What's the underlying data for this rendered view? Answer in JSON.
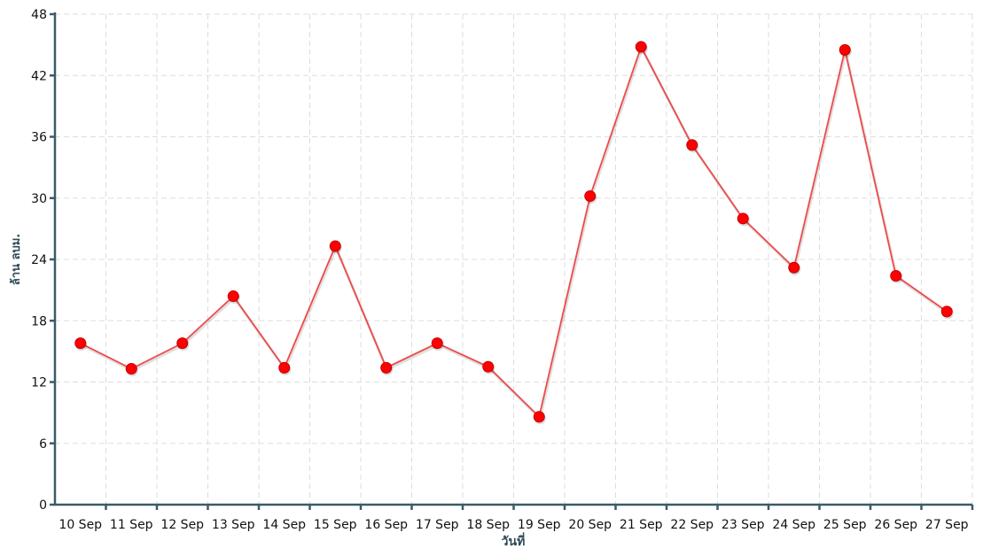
{
  "chart_data": {
    "type": "line",
    "x_label": "วันที่",
    "y_label": "ล้าน ลบม.",
    "categories": [
      "10 Sep",
      "11 Sep",
      "12 Sep",
      "13 Sep",
      "14 Sep",
      "15 Sep",
      "16 Sep",
      "17 Sep",
      "18 Sep",
      "19 Sep",
      "20 Sep",
      "21 Sep",
      "22 Sep",
      "23 Sep",
      "24 Sep",
      "25 Sep",
      "26 Sep",
      "27 Sep"
    ],
    "values": [
      15.8,
      13.3,
      15.8,
      20.4,
      13.4,
      25.3,
      13.4,
      15.8,
      13.5,
      8.6,
      30.2,
      44.8,
      35.2,
      28.0,
      23.2,
      44.5,
      22.4,
      18.9
    ],
    "color": "#ef4a4a",
    "marker_color": "#ff0000",
    "ylim": [
      0,
      48
    ],
    "yticks": [
      0,
      6,
      12,
      18,
      24,
      30,
      36,
      42,
      48
    ],
    "grid": true
  }
}
